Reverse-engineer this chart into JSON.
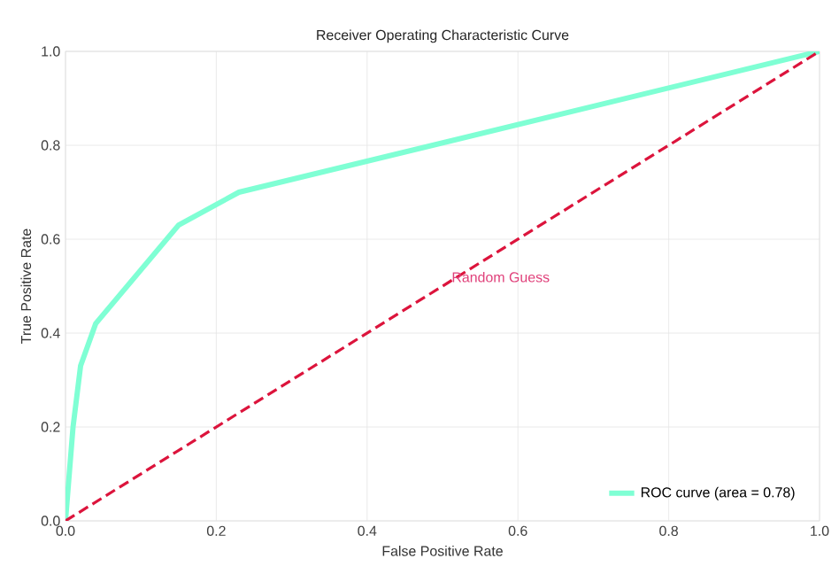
{
  "chart_data": {
    "type": "line",
    "title": "Receiver Operating Characteristic Curve",
    "xlabel": "False Positive Rate",
    "ylabel": "True Positive Rate",
    "series": [
      {
        "name": "ROC curve (area = 0.78)",
        "color": "#7fffd4",
        "x": [
          0,
          0.01,
          0.02,
          0.04,
          0.15,
          0.23,
          1
        ],
        "values": [
          0,
          0.2,
          0.33,
          0.42,
          0.63,
          0.7,
          1
        ]
      },
      {
        "color": "#dc143c",
        "line_style": "dashed",
        "x": [
          0,
          1
        ],
        "values": [
          0,
          1
        ]
      }
    ],
    "annotations": [
      {
        "text": "Random Guess",
        "x": 0.5,
        "y": 0.5
      }
    ],
    "xlim": [
      0,
      1
    ],
    "ylim": [
      0,
      1
    ],
    "xticks": [
      {
        "value": 0,
        "label": "0.0"
      },
      0.2,
      0.4,
      0.6,
      0.8,
      {
        "value": 1,
        "label": "1.0"
      }
    ],
    "yticks": [
      {
        "value": 0,
        "label": "0.0"
      },
      0.2,
      0.4,
      0.6,
      0.8,
      {
        "value": 1,
        "label": "1.0"
      }
    ],
    "grid": true,
    "legend": "bottom right"
  }
}
